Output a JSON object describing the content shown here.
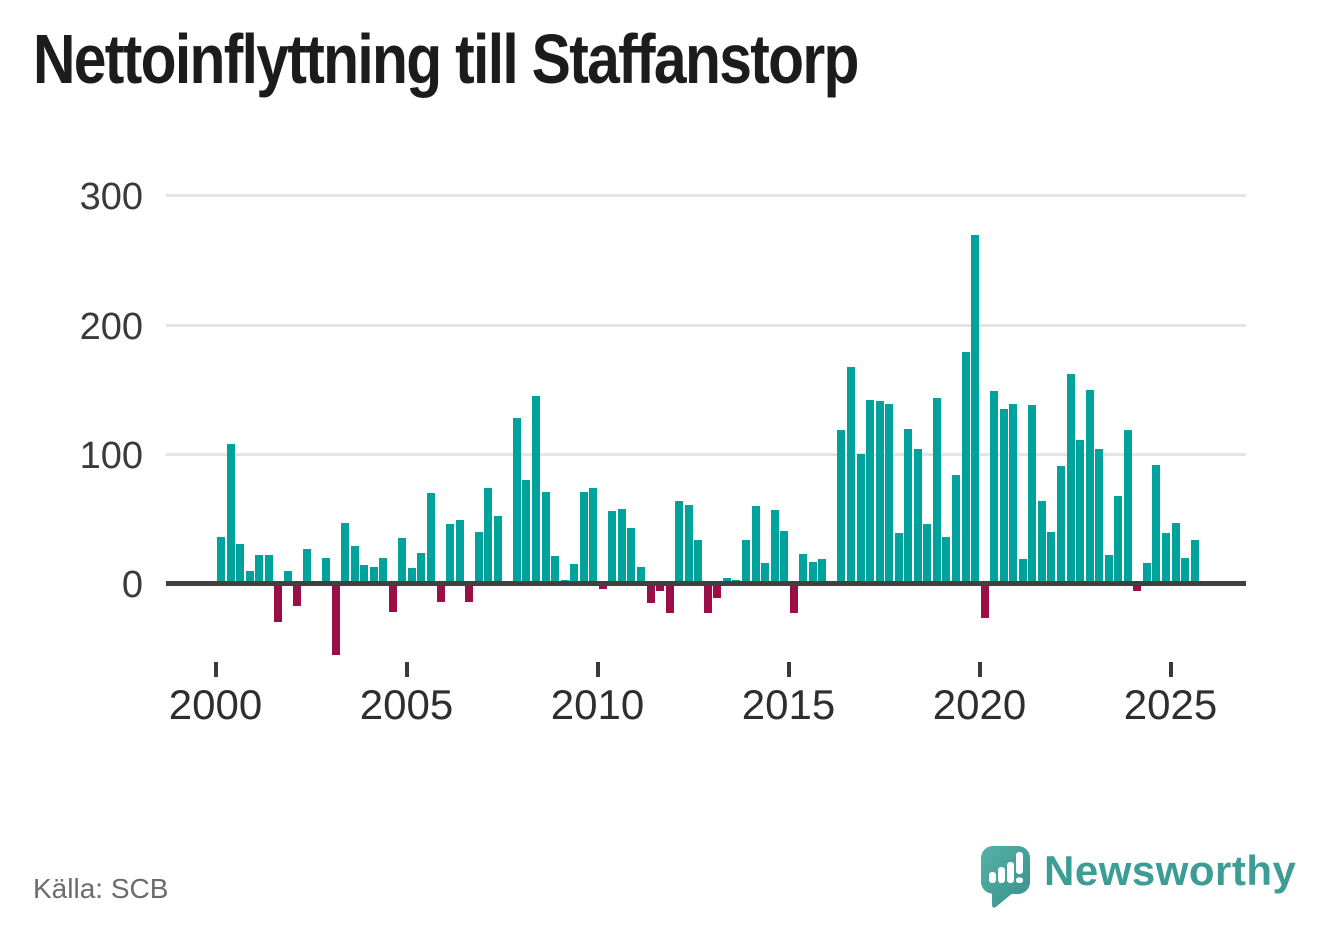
{
  "title": "Nettoinflyttning till Staffanstorp",
  "footer": {
    "source": "Källa: SCB",
    "brand": "Newsworthy"
  },
  "colors": {
    "positive_bar": "#00A39B",
    "negative_bar": "#9B0E47",
    "gridline": "#e4e4e4",
    "zero_line": "#3f4040",
    "axis_text": "#3a3a3a",
    "source_text": "#6b6b70",
    "brand_teal": "#3c9d96",
    "logo_teal_light": "#55b1a9",
    "logo_teal_dark": "#3a9189"
  },
  "chart_data": {
    "type": "bar",
    "title": "Nettoinflyttning till Staffanstorp",
    "xlabel": "",
    "ylabel": "",
    "x_tick_labels": [
      "2000",
      "2005",
      "2010",
      "2015",
      "2020",
      "2025"
    ],
    "yticks": [
      0,
      100,
      200,
      300
    ],
    "ylim": [
      -60,
      310
    ],
    "grid": "horizontal",
    "legend": "none",
    "x_unit": "quarter",
    "series": [
      {
        "year": 2000,
        "quarterly": [
          36,
          108,
          31,
          10
        ]
      },
      {
        "year": 2001,
        "quarterly": [
          22,
          22,
          -30,
          10
        ]
      },
      {
        "year": 2002,
        "quarterly": [
          -17,
          27,
          0,
          20
        ]
      },
      {
        "year": 2003,
        "quarterly": [
          -55,
          47,
          29,
          14
        ]
      },
      {
        "year": 2004,
        "quarterly": [
          13,
          20,
          -22,
          35
        ]
      },
      {
        "year": 2005,
        "quarterly": [
          12,
          24,
          70,
          -14
        ]
      },
      {
        "year": 2006,
        "quarterly": [
          46,
          49,
          -14,
          40
        ]
      },
      {
        "year": 2007,
        "quarterly": [
          74,
          52,
          0,
          128
        ]
      },
      {
        "year": 2008,
        "quarterly": [
          80,
          145,
          71,
          21
        ]
      },
      {
        "year": 2009,
        "quarterly": [
          3,
          15,
          71,
          74
        ]
      },
      {
        "year": 2010,
        "quarterly": [
          -4,
          56,
          58,
          43
        ]
      },
      {
        "year": 2011,
        "quarterly": [
          13,
          -15,
          -6,
          -23
        ]
      },
      {
        "year": 2012,
        "quarterly": [
          64,
          61,
          34,
          -23
        ]
      },
      {
        "year": 2013,
        "quarterly": [
          -11,
          4,
          3,
          34
        ]
      },
      {
        "year": 2014,
        "quarterly": [
          60,
          16,
          57,
          41
        ]
      },
      {
        "year": 2015,
        "quarterly": [
          -23,
          23,
          17,
          19
        ]
      },
      {
        "year": 2016,
        "quarterly": [
          -2,
          119,
          168,
          100
        ]
      },
      {
        "year": 2017,
        "quarterly": [
          142,
          141,
          139,
          39
        ]
      },
      {
        "year": 2018,
        "quarterly": [
          120,
          104,
          46,
          144
        ]
      },
      {
        "year": 2019,
        "quarterly": [
          36,
          84,
          179,
          270
        ]
      },
      {
        "year": 2020,
        "quarterly": [
          -27,
          149,
          135,
          139
        ]
      },
      {
        "year": 2021,
        "quarterly": [
          19,
          138,
          64,
          40
        ]
      },
      {
        "year": 2022,
        "quarterly": [
          91,
          162,
          111,
          150
        ]
      },
      {
        "year": 2023,
        "quarterly": [
          104,
          22,
          68,
          119
        ]
      },
      {
        "year": 2024,
        "quarterly": [
          -6,
          16,
          92,
          39
        ]
      },
      {
        "year": 2025,
        "quarterly": [
          47,
          20,
          34
        ]
      }
    ]
  }
}
